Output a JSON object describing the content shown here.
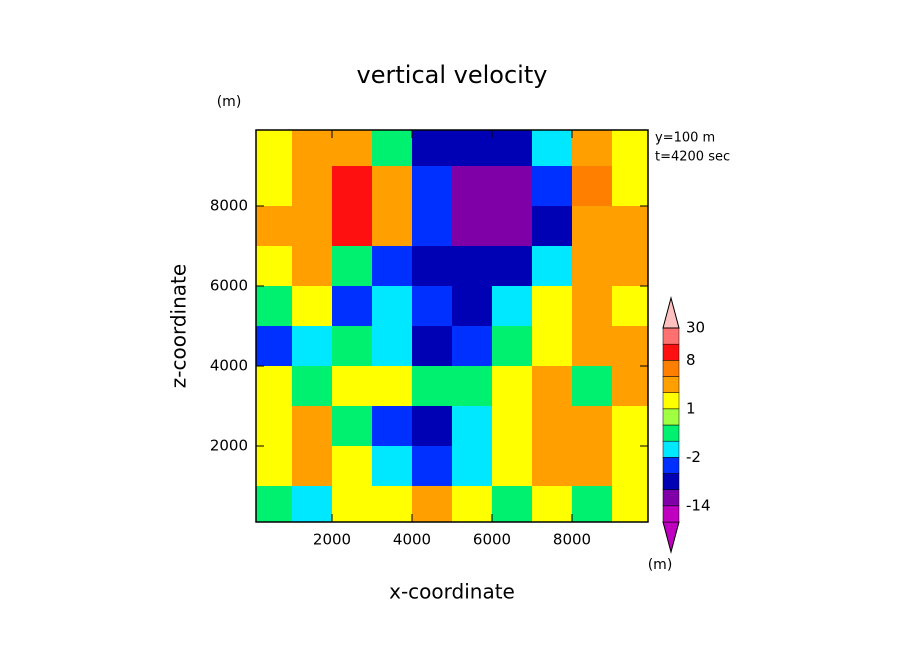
{
  "chart_data": {
    "type": "contourf",
    "title": "vertical velocity",
    "x_label": "x-coordinate",
    "y_label": "z-coordinate",
    "x_unit": "(m)",
    "y_unit": "(m)",
    "annotations": [
      "y=100 m",
      "t=4200 sec"
    ],
    "xlim": [
      100,
      9900
    ],
    "ylim": [
      100,
      9900
    ],
    "xticks": [
      2000,
      4000,
      6000,
      8000
    ],
    "yticks": [
      2000,
      4000,
      6000,
      8000
    ],
    "x": [
      500,
      1500,
      2500,
      3500,
      4500,
      5500,
      6500,
      7500,
      8500,
      9500
    ],
    "y": [
      9500,
      8500,
      7500,
      6500,
      5500,
      4500,
      3500,
      2500,
      1500,
      500
    ],
    "z": [
      [
        1.5,
        3,
        3,
        -0.5,
        -6,
        -6,
        -6,
        -1.5,
        3,
        1.5
      ],
      [
        1.5,
        3,
        10,
        3,
        -3,
        -10,
        -10,
        -3,
        5,
        1.5
      ],
      [
        3,
        3,
        10,
        3,
        -3,
        -10,
        -10,
        -6,
        3,
        3
      ],
      [
        1.5,
        3,
        -0.5,
        -3,
        -6,
        -6,
        -6,
        -1.5,
        3,
        3
      ],
      [
        -0.5,
        1.5,
        -3,
        -1.5,
        -3,
        -6,
        -1.5,
        1.5,
        3,
        1.5
      ],
      [
        -3,
        -1.5,
        -0.5,
        -1.5,
        -6,
        -3,
        -0.5,
        1.5,
        3,
        3
      ],
      [
        1.5,
        -0.5,
        1.5,
        1.5,
        -0.5,
        -0.5,
        1.5,
        3,
        -0.5,
        3
      ],
      [
        1.5,
        3,
        -0.5,
        -3,
        -6,
        -1.5,
        1.5,
        3,
        3,
        1.5
      ],
      [
        1.5,
        3,
        1.5,
        -1.5,
        -3,
        -1.5,
        1.5,
        3,
        3,
        1.5
      ],
      [
        -0.5,
        -1.5,
        1.5,
        1.5,
        3,
        1.5,
        -0.5,
        1.5,
        -0.5,
        1.5
      ]
    ],
    "colorbar": {
      "unit": "(m)",
      "levels": [
        -20,
        -14,
        -8,
        -4,
        -2,
        -1,
        0,
        1,
        2,
        4,
        8,
        16,
        30
      ],
      "colors": [
        "#c000c0",
        "#c000c0",
        "#8000a8",
        "#0000b4",
        "#0030ff",
        "#00e8ff",
        "#00f070",
        "#a0ff40",
        "#ffff00",
        "#ffa000",
        "#ff8000",
        "#ff1010",
        "#ff7070",
        "#ffc0c0"
      ],
      "ticks": [
        -14,
        -2,
        1,
        8,
        30
      ]
    }
  }
}
